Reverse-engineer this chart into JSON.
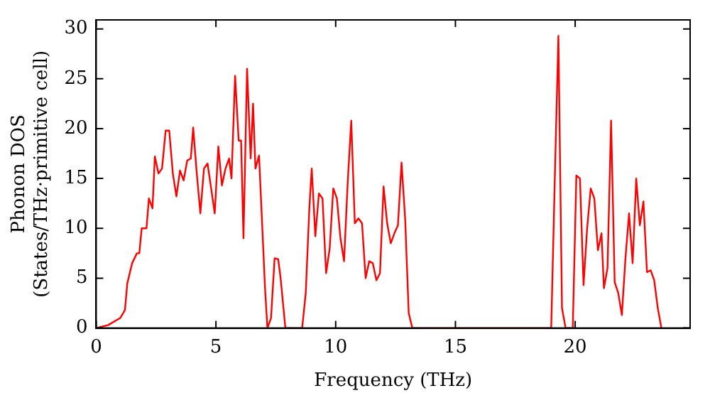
{
  "chart_data": {
    "type": "line",
    "xlabel": "Frequency (THz)",
    "ylabel": "Phonon DOS\n(States/THz·primitive cell)",
    "xlim": [
      0,
      24.8
    ],
    "ylim": [
      0,
      30.9
    ],
    "xticks": [
      0,
      5,
      10,
      15,
      20
    ],
    "yticks": [
      0,
      5,
      10,
      15,
      20,
      25,
      30
    ],
    "grid": false,
    "legend": false,
    "marker": "none",
    "line_style": "solid",
    "series": [
      {
        "color": "#ff0000",
        "x": [
          0,
          0.5,
          1.0,
          1.2,
          1.3,
          1.5,
          1.7,
          1.8,
          1.9,
          2.1,
          2.2,
          2.35,
          2.45,
          2.6,
          2.75,
          2.9,
          3.05,
          3.2,
          3.35,
          3.5,
          3.65,
          3.8,
          3.95,
          4.05,
          4.2,
          4.35,
          4.5,
          4.65,
          4.8,
          4.95,
          5.1,
          5.25,
          5.4,
          5.55,
          5.65,
          5.8,
          5.95,
          6.05,
          6.15,
          6.3,
          6.45,
          6.55,
          6.65,
          6.8,
          6.9,
          7.05,
          7.15,
          7.3,
          7.45,
          7.6,
          7.7,
          7.9,
          8.6,
          8.75,
          8.9,
          9.0,
          9.15,
          9.3,
          9.45,
          9.6,
          9.75,
          9.9,
          10.05,
          10.2,
          10.35,
          10.5,
          10.65,
          10.8,
          10.95,
          11.1,
          11.25,
          11.4,
          11.55,
          11.7,
          11.85,
          12.0,
          12.15,
          12.3,
          12.45,
          12.6,
          12.75,
          12.9,
          13.05,
          13.2,
          19.0,
          19.15,
          19.3,
          19.45,
          19.6,
          19.9,
          20.05,
          20.2,
          20.35,
          20.5,
          20.65,
          20.8,
          20.95,
          21.1,
          21.2,
          21.35,
          21.5,
          21.65,
          21.8,
          21.95,
          22.1,
          22.25,
          22.4,
          22.55,
          22.7,
          22.85,
          23.0,
          23.15,
          23.3,
          23.45,
          23.6
        ],
        "values": [
          0,
          0.3,
          1,
          1.8,
          4.5,
          6.5,
          7.5,
          7.5,
          10,
          10,
          13,
          12,
          17.2,
          15.5,
          16,
          19.8,
          19.8,
          15.5,
          13.2,
          15.8,
          14.8,
          16.8,
          17,
          20.1,
          15.5,
          11.5,
          16,
          16.5,
          14,
          11.5,
          18.2,
          14.3,
          16,
          17,
          15,
          25.3,
          18.8,
          18.8,
          9,
          26,
          17,
          22.5,
          16,
          17.3,
          12,
          4,
          0,
          1,
          7,
          6.9,
          5,
          0,
          0,
          3.5,
          12,
          16,
          9.2,
          13.5,
          13,
          5.5,
          8,
          14,
          13,
          9,
          6.7,
          14.5,
          20.8,
          10.5,
          11,
          10.5,
          5,
          6.7,
          6.5,
          4.8,
          5.5,
          14.2,
          10.5,
          8.5,
          9.5,
          10.3,
          16.6,
          11,
          1.5,
          0,
          0,
          15,
          29.3,
          2,
          0,
          0,
          15.3,
          15,
          4.3,
          10,
          14,
          13,
          7.8,
          9.5,
          4,
          6,
          20.8,
          4.6,
          3.5,
          1.3,
          7,
          11.5,
          6.5,
          15,
          10.3,
          12.7,
          5.6,
          5.8,
          4.8,
          2,
          0
        ]
      }
    ]
  }
}
